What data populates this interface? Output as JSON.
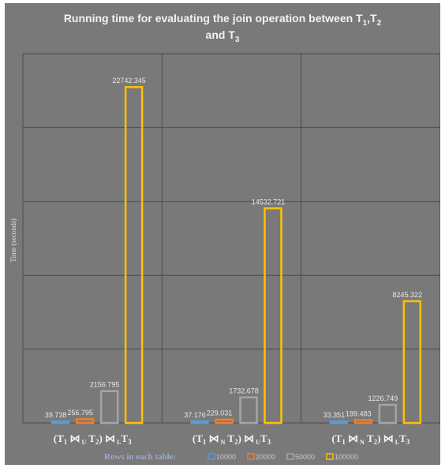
{
  "chart_data": {
    "type": "bar",
    "title_parts": {
      "line1": "Running time for evaluating the join operation between T",
      "sub1": "1",
      "comma": ",T",
      "sub2": "2",
      "line2": "and T",
      "sub3": "3"
    },
    "ylabel": "Time (seconds)",
    "categories": [
      {
        "open": "(T",
        "s1": "1",
        "op1": " ⋈",
        "j1": " U",
        "mid": " T",
        "s2": "2",
        "close": ") ⋈",
        "j2": " L",
        "end": "T",
        "s3": "3"
      },
      {
        "open": "(T",
        "s1": "1",
        "op1": " ⋈",
        "j1": " N",
        "mid": " T",
        "s2": "2",
        "close": ") ⋈",
        "j2": " U",
        "end": "T",
        "s3": "3"
      },
      {
        "open": "(T",
        "s1": "1",
        "op1": " ⋈",
        "j1": " N",
        "mid": " T",
        "s2": "2",
        "close": ") ⋈",
        "j2": " L",
        "end": "T",
        "s3": "3"
      }
    ],
    "series": [
      {
        "name": "10000",
        "color": "#5b9bd5",
        "values": [
          39.738,
          37.176,
          33.351
        ],
        "labels": [
          "39.738",
          "37.176",
          "33.351"
        ]
      },
      {
        "name": "20000",
        "color": "#ed7d31",
        "values": [
          256.795,
          229.031,
          199.483
        ],
        "labels": [
          "256.795",
          "229.031",
          "199.483"
        ]
      },
      {
        "name": "50000",
        "color": "#a5a5a5",
        "values": [
          2156.795,
          1732.678,
          1226.749
        ],
        "labels": [
          "2156.795",
          "1732.678",
          "1226.749"
        ]
      },
      {
        "name": "100000",
        "color": "#ffc000",
        "values": [
          22742.345,
          14532.721,
          8245.322
        ],
        "labels": [
          "22742.345",
          "14532.721",
          "8245.322"
        ]
      }
    ],
    "legend_title": "Rows in each table:",
    "legend_position": "bottom",
    "grid": true,
    "value_labels": true,
    "ylim": [
      0,
      25000
    ]
  }
}
